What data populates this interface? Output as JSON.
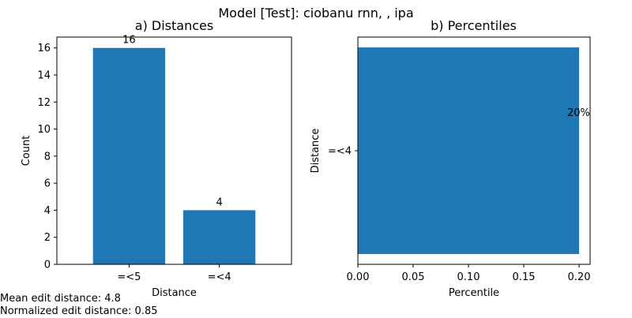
{
  "figure": {
    "suptitle": "Model [Test]: ciobanu rnn, , ipa",
    "notes": {
      "mean_edit_distance": "Mean edit distance: 4.8",
      "normalized_edit_distance": "Normalized edit distance: 0.85"
    }
  },
  "colors": {
    "bar": "#1f77b4",
    "axis": "#000000",
    "background": "#ffffff"
  },
  "chart_data": [
    {
      "type": "bar",
      "title": "a) Distances",
      "xlabel": "Distance",
      "ylabel": "Count",
      "categories": [
        "=<5",
        "=<4"
      ],
      "values": [
        16,
        4
      ],
      "value_labels": [
        "16",
        "4"
      ],
      "ylim": [
        0,
        16.8
      ],
      "yticks": [
        0,
        2,
        4,
        6,
        8,
        10,
        12,
        14,
        16
      ],
      "grid": false
    },
    {
      "type": "bar",
      "orientation": "horizontal",
      "title": "b) Percentiles",
      "xlabel": "Percentile",
      "ylabel": "Distance",
      "categories": [
        "=<4"
      ],
      "values": [
        0.2
      ],
      "value_labels": [
        "20%"
      ],
      "xlim": [
        0,
        0.21
      ],
      "xticks": [
        0.0,
        0.05,
        0.1,
        0.15,
        0.2
      ],
      "xtick_labels": [
        "0.00",
        "0.05",
        "0.10",
        "0.15",
        "0.20"
      ],
      "grid": false
    }
  ]
}
